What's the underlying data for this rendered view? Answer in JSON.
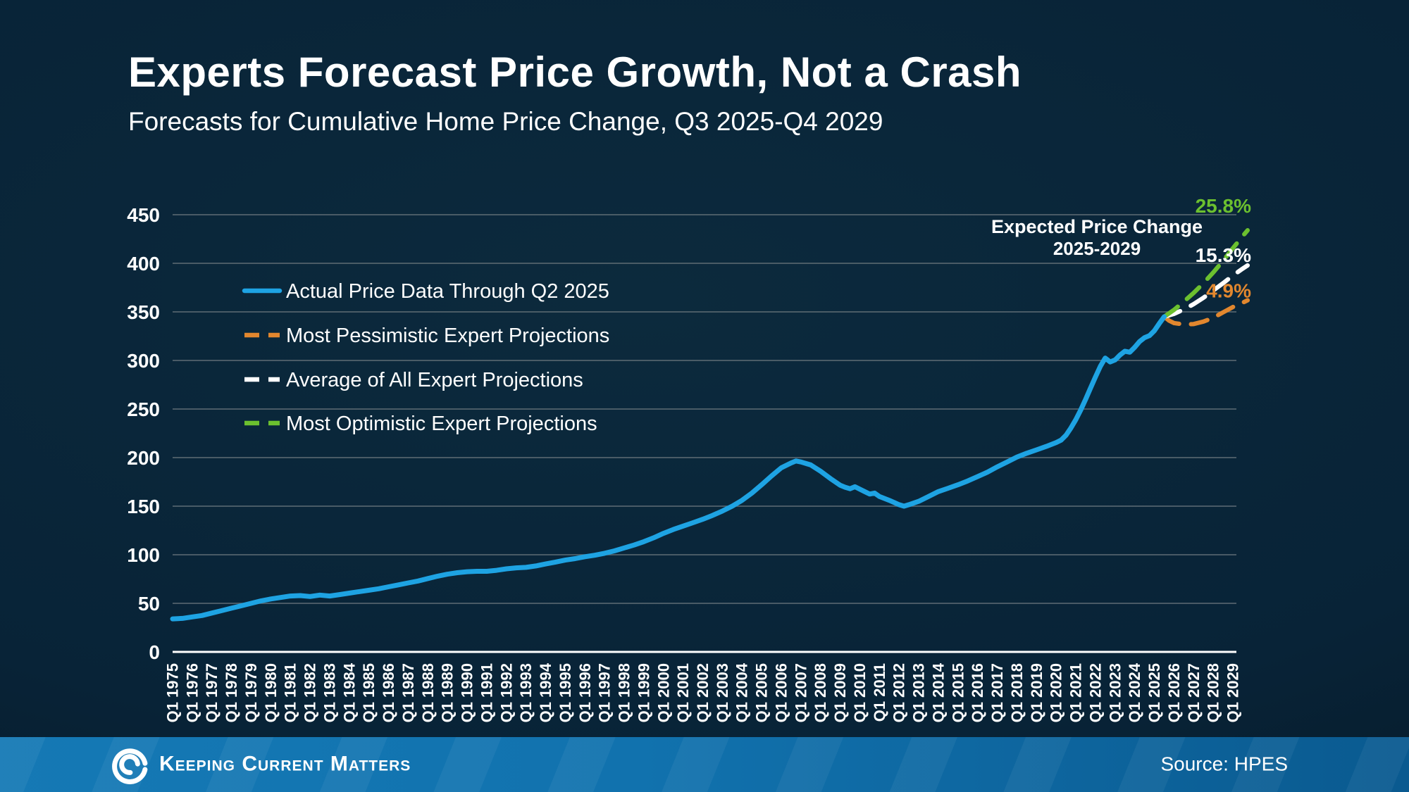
{
  "header": {
    "title": "Experts Forecast Price Growth, Not a Crash",
    "subtitle": "Forecasts for Cumulative Home Price Change, Q3 2025-Q4 2029"
  },
  "annotation": {
    "title": "Expected Price Change",
    "subtitle": "2025-2029"
  },
  "footer": {
    "brand": "Keeping Current Matters",
    "source": "Source: HPES",
    "logo": "kcm-swirl-logo"
  },
  "colors": {
    "actual_blue": "#1ea3e3",
    "pessimistic_orange": "#e2872e",
    "average_white": "#ffffff",
    "optimistic_green": "#6cc02f",
    "grid": "#5f6d75",
    "axis": "#ffffff",
    "footer_blue": "#1172ae",
    "background": "#082337"
  },
  "chart_data": {
    "type": "line",
    "title": "Experts Forecast Price Growth, Not a Crash",
    "subtitle": "Forecasts for Cumulative Home Price Change, Q3 2025-Q4 2029",
    "xlabel": "",
    "ylabel": "",
    "ylim": [
      0,
      450
    ],
    "yticks": [
      0,
      50,
      100,
      150,
      200,
      250,
      300,
      350,
      400,
      450
    ],
    "grid": true,
    "grid_color": "#5f6d75",
    "legend_position": "upper-left-inside",
    "x_range": [
      1975,
      2029
    ],
    "x_labels": [
      "Q1 1975",
      "Q1 1976",
      "Q1 1977",
      "Q1 1978",
      "Q1 1979",
      "Q1 1980",
      "Q1 1981",
      "Q1 1982",
      "Q1 1983",
      "Q1 1984",
      "Q1 1985",
      "Q1 1986",
      "Q1 1987",
      "Q1 1988",
      "Q1 1989",
      "Q1 1990",
      "Q1 1991",
      "Q1 1992",
      "Q1 1993",
      "Q1 1994",
      "Q1 1995",
      "Q1 1996",
      "Q1 1997",
      "Q1 1998",
      "Q1 1999",
      "Q1 2000",
      "Q1 2001",
      "Q1 2002",
      "Q1 2003",
      "Q1 2004",
      "Q1 2005",
      "Q1 2006",
      "Q1 2007",
      "Q1 2008",
      "Q1 2009",
      "Q1 2010",
      "Q1 2011",
      "Q1 2012",
      "Q1 2013",
      "Q1 2014",
      "Q1 2015",
      "Q1 2016",
      "Q1 2017",
      "Q1 2018",
      "Q1 2019",
      "Q1 2020",
      "Q1 2021",
      "Q1 2022",
      "Q1 2023",
      "Q1 2024",
      "Q1 2025",
      "Q1 2026",
      "Q1 2027",
      "Q1 2028",
      "Q1 2029"
    ],
    "series": [
      {
        "name": "Actual Price Data Through Q2 2025",
        "data_name": "series-actual-line",
        "color": "#1ea3e3",
        "style": "solid",
        "end_label": "",
        "points": [
          [
            1975,
            34
          ],
          [
            1975.5,
            34.5
          ],
          [
            1976,
            36
          ],
          [
            1976.5,
            37.5
          ],
          [
            1977,
            40
          ],
          [
            1977.5,
            42.5
          ],
          [
            1978,
            45
          ],
          [
            1978.5,
            47.5
          ],
          [
            1979,
            50
          ],
          [
            1979.5,
            52.5
          ],
          [
            1980,
            54.5
          ],
          [
            1980.5,
            56
          ],
          [
            1981,
            57.5
          ],
          [
            1981.5,
            58
          ],
          [
            1982,
            57
          ],
          [
            1982.5,
            58.5
          ],
          [
            1983,
            57.5
          ],
          [
            1983.5,
            59
          ],
          [
            1984,
            60.5
          ],
          [
            1984.5,
            62
          ],
          [
            1985,
            63.5
          ],
          [
            1985.5,
            65
          ],
          [
            1986,
            67
          ],
          [
            1986.5,
            69
          ],
          [
            1987,
            71
          ],
          [
            1987.5,
            73
          ],
          [
            1988,
            75.5
          ],
          [
            1988.5,
            78
          ],
          [
            1989,
            80
          ],
          [
            1989.5,
            81.5
          ],
          [
            1990,
            82.5
          ],
          [
            1990.5,
            83
          ],
          [
            1991,
            83
          ],
          [
            1991.5,
            84
          ],
          [
            1992,
            85.5
          ],
          [
            1992.5,
            86.5
          ],
          [
            1993,
            87
          ],
          [
            1993.5,
            88.5
          ],
          [
            1994,
            90.5
          ],
          [
            1994.5,
            92.5
          ],
          [
            1995,
            94.5
          ],
          [
            1995.5,
            96
          ],
          [
            1996,
            98
          ],
          [
            1996.5,
            99.5
          ],
          [
            1997,
            101.5
          ],
          [
            1997.5,
            104
          ],
          [
            1998,
            107
          ],
          [
            1998.5,
            110
          ],
          [
            1999,
            113.5
          ],
          [
            1999.5,
            117.5
          ],
          [
            2000,
            122
          ],
          [
            2000.5,
            126
          ],
          [
            2001,
            129.5
          ],
          [
            2001.5,
            133
          ],
          [
            2002,
            136.5
          ],
          [
            2002.5,
            140.5
          ],
          [
            2003,
            145
          ],
          [
            2003.5,
            150
          ],
          [
            2004,
            156
          ],
          [
            2004.5,
            163.5
          ],
          [
            2005,
            172
          ],
          [
            2005.5,
            181
          ],
          [
            2006,
            189.5
          ],
          [
            2006.5,
            194.5
          ],
          [
            2006.75,
            196.5
          ],
          [
            2007,
            195.5
          ],
          [
            2007.5,
            192.5
          ],
          [
            2008,
            186
          ],
          [
            2008.5,
            178.5
          ],
          [
            2009,
            171.5
          ],
          [
            2009.25,
            169.5
          ],
          [
            2009.5,
            168
          ],
          [
            2009.75,
            170
          ],
          [
            2010,
            167.5
          ],
          [
            2010.25,
            165
          ],
          [
            2010.5,
            162.5
          ],
          [
            2010.75,
            163.5
          ],
          [
            2011,
            160
          ],
          [
            2011.5,
            156
          ],
          [
            2012,
            151.5
          ],
          [
            2012.25,
            150
          ],
          [
            2012.5,
            151.5
          ],
          [
            2013,
            155
          ],
          [
            2013.5,
            160
          ],
          [
            2014,
            165
          ],
          [
            2014.5,
            168.5
          ],
          [
            2015,
            172
          ],
          [
            2015.5,
            176
          ],
          [
            2016,
            180.5
          ],
          [
            2016.5,
            185
          ],
          [
            2017,
            190.5
          ],
          [
            2017.5,
            195.5
          ],
          [
            2018,
            200.5
          ],
          [
            2018.5,
            204.5
          ],
          [
            2019,
            208
          ],
          [
            2019.5,
            211.5
          ],
          [
            2020,
            215.5
          ],
          [
            2020.25,
            218
          ],
          [
            2020.5,
            223
          ],
          [
            2020.75,
            230.5
          ],
          [
            2021,
            239
          ],
          [
            2021.25,
            249
          ],
          [
            2021.5,
            260
          ],
          [
            2021.75,
            271.5
          ],
          [
            2022,
            283
          ],
          [
            2022.25,
            294
          ],
          [
            2022.5,
            302.5
          ],
          [
            2022.75,
            298.5
          ],
          [
            2023,
            300.5
          ],
          [
            2023.25,
            305.5
          ],
          [
            2023.5,
            309.5
          ],
          [
            2023.75,
            308.5
          ],
          [
            2024,
            313.5
          ],
          [
            2024.25,
            319.5
          ],
          [
            2024.5,
            323.5
          ],
          [
            2024.75,
            325.5
          ],
          [
            2025,
            330.5
          ],
          [
            2025.25,
            338
          ],
          [
            2025.5,
            345
          ]
        ]
      },
      {
        "name": "Most Pessimistic Expert Projections",
        "data_name": "series-pessimistic-line",
        "color": "#e2872e",
        "style": "dashed",
        "end_label": "4.9%",
        "points": [
          [
            2025.5,
            345
          ],
          [
            2025.75,
            341
          ],
          [
            2026,
            338.5
          ],
          [
            2026.5,
            337
          ],
          [
            2027,
            337.5
          ],
          [
            2027.5,
            340
          ],
          [
            2028,
            344
          ],
          [
            2028.5,
            349.5
          ],
          [
            2029,
            355
          ],
          [
            2029.5,
            359.5
          ],
          [
            2029.75,
            361.9
          ]
        ]
      },
      {
        "name": "Average of All Expert Projections",
        "data_name": "series-average-line",
        "color": "#ffffff",
        "style": "dashed",
        "end_label": "15.3%",
        "points": [
          [
            2025.5,
            345
          ],
          [
            2026,
            348
          ],
          [
            2026.5,
            352.5
          ],
          [
            2027,
            358
          ],
          [
            2027.5,
            364.5
          ],
          [
            2028,
            372
          ],
          [
            2028.5,
            379.5
          ],
          [
            2029,
            387.5
          ],
          [
            2029.5,
            394.5
          ],
          [
            2029.75,
            397.8
          ]
        ]
      },
      {
        "name": "Most Optimistic Expert Projections",
        "data_name": "series-optimistic-line",
        "color": "#6cc02f",
        "style": "dashed",
        "end_label": "25.8%",
        "points": [
          [
            2025.5,
            345
          ],
          [
            2026,
            352
          ],
          [
            2026.5,
            360.5
          ],
          [
            2027,
            369.5
          ],
          [
            2027.5,
            379.5
          ],
          [
            2028,
            390.5
          ],
          [
            2028.5,
            402.5
          ],
          [
            2029,
            415.5
          ],
          [
            2029.5,
            428
          ],
          [
            2029.75,
            434
          ]
        ]
      }
    ]
  }
}
